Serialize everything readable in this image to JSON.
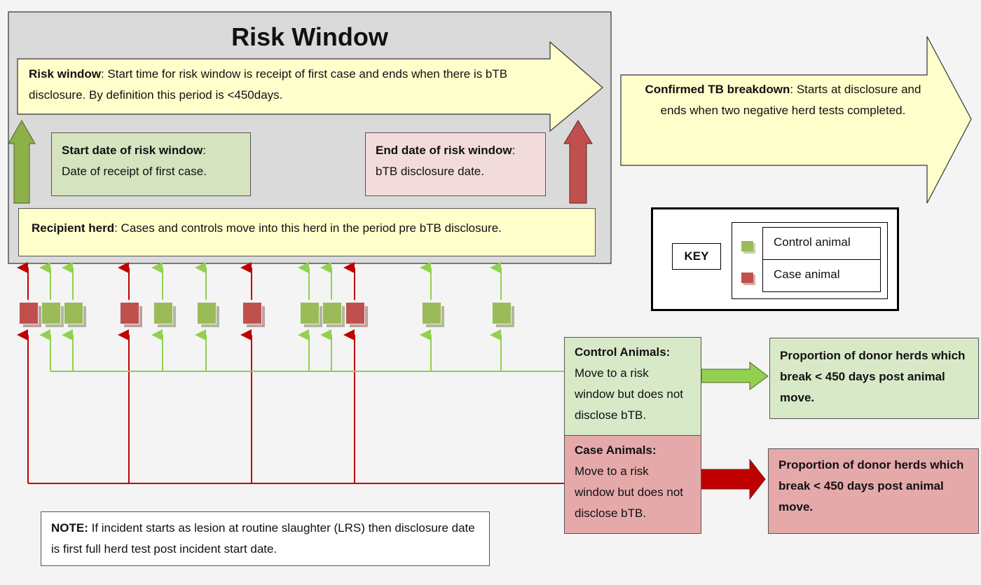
{
  "title": "Risk Window",
  "risk_window": {
    "label": "Risk window",
    "text": ": Start time for risk window is receipt of first case and ends when there is bTB disclosure. By definition this period is <450days."
  },
  "start_date": {
    "label": "Start date of risk window",
    "text": "Date of receipt of first case."
  },
  "end_date": {
    "label": "End date of risk window",
    "text": "bTB disclosure date."
  },
  "recipient_herd": {
    "label": "Recipient herd",
    "text": ": Cases and controls move into this herd in the period pre bTB disclosure."
  },
  "confirmed": {
    "label": "Confirmed TB breakdown",
    "text": ": Starts at disclosure and ends when two negative herd tests completed."
  },
  "key": {
    "title": "KEY",
    "items": [
      {
        "label": "Control animal",
        "color": "#9bbb59"
      },
      {
        "label": "Case animal",
        "color": "#c0504d"
      }
    ]
  },
  "animals": [
    "case",
    "control",
    "control",
    "case",
    "control",
    "control",
    "case",
    "control",
    "control",
    "case",
    "control",
    "control"
  ],
  "control_animals": {
    "label": "Control Animals:",
    "text": "Move to a risk window but does not disclose bTB."
  },
  "case_animals": {
    "label": "Case Animals:",
    "text": "Move to a risk window but does not disclose bTB."
  },
  "control_outcome": "Proportion of donor herds which break < 450 days post animal move.",
  "case_outcome": "Proportion of donor herds which break < 450 days post animal move.",
  "note": {
    "label": "NOTE:",
    "text": " If incident starts as lesion at routine slaughter (LRS) then disclosure date is first full herd test post incident start date."
  },
  "colors": {
    "control": "#9bbb59",
    "case": "#c0504d",
    "control_line": "#92d050",
    "case_line": "#c00000",
    "yellow": "#ffffcc"
  }
}
